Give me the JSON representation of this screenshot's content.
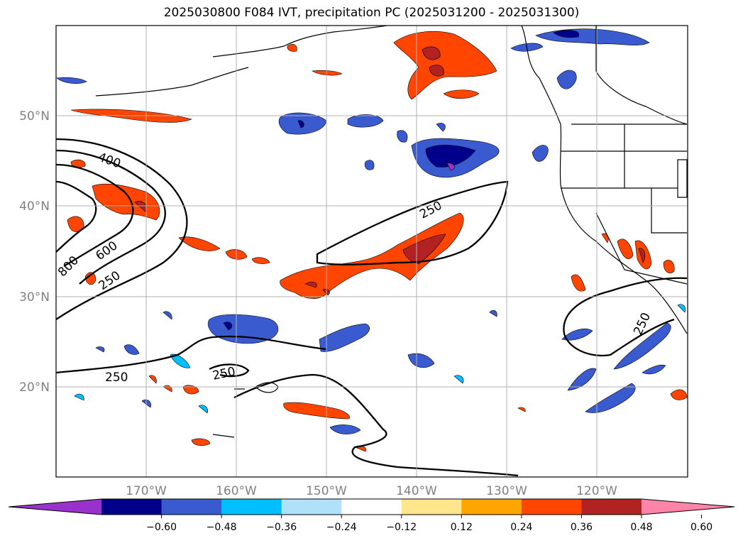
{
  "title": "2025030800 F084 IVT, precipitation PC (2025031200 - 2025031300)",
  "map": {
    "projection": "plate carree",
    "lon_range": [
      -180,
      -110
    ],
    "lat_range": [
      10,
      60
    ],
    "grid": true,
    "lat_labels": [
      "20°N",
      "30°N",
      "40°N",
      "50°N"
    ],
    "lon_labels": [
      "170°W",
      "160°W",
      "150°W",
      "140°W",
      "130°W",
      "120°W"
    ],
    "ivt_contour_levels": [
      250,
      400,
      600,
      800
    ],
    "contour_labels": [
      "250",
      "250",
      "250",
      "250",
      "250",
      "400",
      "600",
      "800"
    ]
  },
  "colorbar": {
    "ticks": [
      "−0.60",
      "−0.48",
      "−0.36",
      "−0.24",
      "−0.12",
      "0.12",
      "0.24",
      "0.36",
      "0.48",
      "0.60"
    ],
    "colors": [
      "#9932cc",
      "#00008b",
      "#3a5bd0",
      "#00bfff",
      "#b0e0fa",
      "#ffffff",
      "#ffe68c",
      "#ffa500",
      "#ff4500",
      "#b22222",
      "#ff85a8"
    ],
    "extend": "both"
  }
}
